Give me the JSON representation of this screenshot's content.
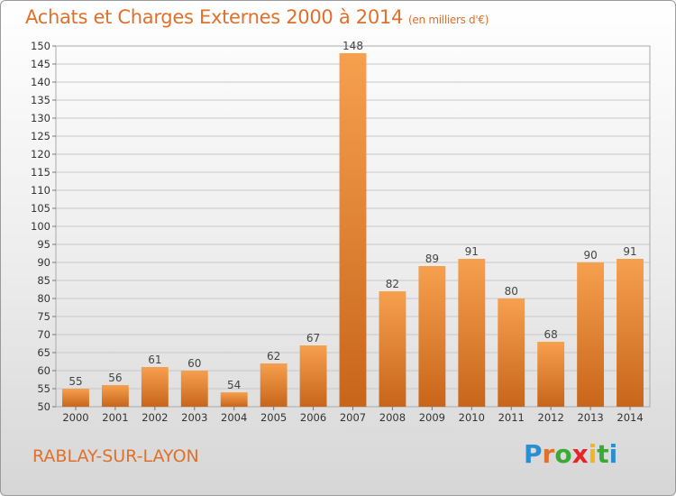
{
  "header": {
    "title": "Achats et Charges Externes 2000 à 2014",
    "subtitle": "(en milliers d'€)"
  },
  "footer": {
    "city": "RABLAY-SUR-LAYON",
    "logo": [
      "P",
      "r",
      "o",
      "x",
      "i",
      "t",
      "i"
    ],
    "logo_colors": [
      "#2a8fd0",
      "#e0702a",
      "#3aaa35",
      "#e52528",
      "#f2b51a",
      "#3aaa35",
      "#2a8fd0"
    ]
  },
  "colors": {
    "bar_top": "#f6a04e",
    "bar_bottom": "#c8651a",
    "text_accent": "#e0702a",
    "grid": "#c8c8c8"
  },
  "chart_data": {
    "type": "bar",
    "title": "Achats et Charges Externes 2000 à 2014",
    "subtitle": "(en milliers d'€)",
    "xlabel": "",
    "ylabel": "",
    "categories": [
      "2000",
      "2001",
      "2002",
      "2003",
      "2004",
      "2005",
      "2006",
      "2007",
      "2008",
      "2009",
      "2010",
      "2011",
      "2012",
      "2013",
      "2014"
    ],
    "values": [
      55,
      56,
      61,
      60,
      54,
      62,
      67,
      148,
      82,
      89,
      91,
      80,
      68,
      90,
      91
    ],
    "ylim": [
      50,
      150
    ],
    "yticks": [
      50,
      55,
      60,
      65,
      70,
      75,
      80,
      85,
      90,
      95,
      100,
      105,
      110,
      115,
      120,
      125,
      130,
      135,
      140,
      145,
      150
    ],
    "grid": true,
    "legend": "none"
  }
}
